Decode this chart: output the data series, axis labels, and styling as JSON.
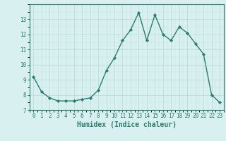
{
  "x": [
    0,
    1,
    2,
    3,
    4,
    5,
    6,
    7,
    8,
    9,
    10,
    11,
    12,
    13,
    14,
    15,
    16,
    17,
    18,
    19,
    20,
    21,
    22,
    23
  ],
  "y": [
    9.2,
    8.2,
    7.8,
    7.6,
    7.6,
    7.6,
    7.7,
    7.8,
    8.3,
    9.6,
    10.45,
    11.6,
    12.3,
    13.45,
    11.6,
    13.3,
    12.0,
    11.6,
    12.5,
    12.1,
    11.4,
    10.7,
    8.0,
    7.5
  ],
  "line_color": "#2d7d6e",
  "marker": "D",
  "markersize": 2.2,
  "linewidth": 1.0,
  "bg_color": "#d8f0f0",
  "grid_major_color": "#b8d8d8",
  "grid_minor_color": "#c8e4e4",
  "xlabel": "Humidex (Indice chaleur)",
  "xlabel_fontsize": 7,
  "ylim": [
    7,
    14
  ],
  "xlim": [
    -0.5,
    23.5
  ],
  "yticks": [
    7,
    8,
    9,
    10,
    11,
    12,
    13
  ],
  "xticks": [
    0,
    1,
    2,
    3,
    4,
    5,
    6,
    7,
    8,
    9,
    10,
    11,
    12,
    13,
    14,
    15,
    16,
    17,
    18,
    19,
    20,
    21,
    22,
    23
  ],
  "tick_fontsize": 5.5,
  "spine_color": "#2d7d6e"
}
